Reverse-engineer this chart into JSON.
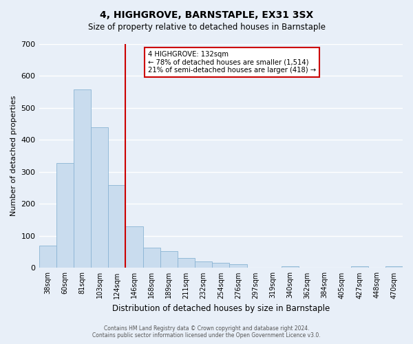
{
  "title": "4, HIGHGROVE, BARNSTAPLE, EX31 3SX",
  "subtitle": "Size of property relative to detached houses in Barnstaple",
  "xlabel": "Distribution of detached houses by size in Barnstaple",
  "ylabel": "Number of detached properties",
  "bar_labels": [
    "38sqm",
    "60sqm",
    "81sqm",
    "103sqm",
    "124sqm",
    "146sqm",
    "168sqm",
    "189sqm",
    "211sqm",
    "232sqm",
    "254sqm",
    "276sqm",
    "297sqm",
    "319sqm",
    "340sqm",
    "362sqm",
    "384sqm",
    "405sqm",
    "427sqm",
    "448sqm",
    "470sqm"
  ],
  "bar_values": [
    70,
    328,
    558,
    440,
    258,
    130,
    63,
    52,
    30,
    20,
    15,
    12,
    0,
    0,
    5,
    0,
    0,
    0,
    6,
    0,
    5
  ],
  "bar_color": "#c9dcee",
  "bar_edge_color": "#8ab4d4",
  "ylim": [
    0,
    700
  ],
  "yticks": [
    0,
    100,
    200,
    300,
    400,
    500,
    600,
    700
  ],
  "vline_x": 4.5,
  "vline_color": "#cc0000",
  "annotation_title": "4 HIGHGROVE: 132sqm",
  "annotation_line1": "← 78% of detached houses are smaller (1,514)",
  "annotation_line2": "21% of semi-detached houses are larger (418) →",
  "annotation_box_color": "#cc0000",
  "footer1": "Contains HM Land Registry data © Crown copyright and database right 2024.",
  "footer2": "Contains public sector information licensed under the Open Government Licence v3.0.",
  "background_color": "#e8eff8",
  "grid_color": "#ffffff"
}
